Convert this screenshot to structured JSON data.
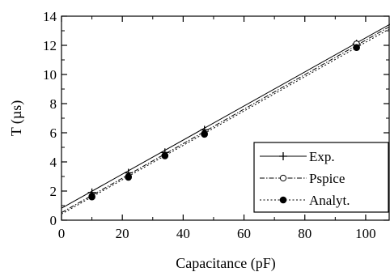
{
  "chart_data": {
    "type": "scatter",
    "xlabel": "Capacitance (pF)",
    "ylabel": "T (µs)",
    "xlim": [
      0,
      108
    ],
    "ylim": [
      0,
      14
    ],
    "x_ticks": [
      0,
      20,
      40,
      60,
      80,
      100
    ],
    "y_ticks": [
      0,
      2,
      4,
      6,
      8,
      10,
      12,
      14
    ],
    "x_ticks_minor": [
      10,
      30,
      50,
      70,
      90
    ],
    "y_ticks_minor": [
      1,
      3,
      5,
      7,
      9,
      11,
      13
    ],
    "grid": false,
    "legend_position": "bottom-right",
    "series": [
      {
        "name": "Exp.",
        "marker": "plus",
        "line_style": "solid",
        "points": [
          [
            10,
            1.9
          ],
          [
            22,
            3.25
          ],
          [
            34,
            4.65
          ],
          [
            47,
            6.2
          ],
          [
            97,
            12.1
          ]
        ],
        "fit_line": [
          [
            0,
            0.82
          ],
          [
            108,
            13.45
          ]
        ]
      },
      {
        "name": "Pspice",
        "marker": "open-circle",
        "line_style": "dash-dot",
        "points": [
          [
            10,
            1.65
          ],
          [
            22,
            3.0
          ],
          [
            34,
            4.45
          ],
          [
            47,
            5.95
          ],
          [
            97,
            12.1
          ]
        ],
        "fit_line": [
          [
            0,
            0.52
          ],
          [
            108,
            13.3
          ]
        ]
      },
      {
        "name": "Analyt.",
        "marker": "filled-circle",
        "line_style": "dotted",
        "points": [
          [
            10,
            1.6
          ],
          [
            22,
            2.95
          ],
          [
            34,
            4.42
          ],
          [
            47,
            5.9
          ],
          [
            97,
            11.85
          ]
        ],
        "fit_line": [
          [
            0,
            0.42
          ],
          [
            108,
            13.15
          ]
        ]
      }
    ]
  }
}
